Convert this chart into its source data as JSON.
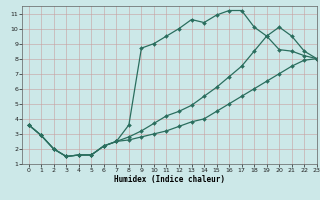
{
  "title": "",
  "xlabel": "Humidex (Indice chaleur)",
  "bg_color": "#cce8e8",
  "grid_color": "#aacccc",
  "line_color": "#2a6e5e",
  "xlim": [
    -0.5,
    23
  ],
  "ylim": [
    1,
    11.5
  ],
  "xticks": [
    0,
    1,
    2,
    3,
    4,
    5,
    6,
    7,
    8,
    9,
    10,
    11,
    12,
    13,
    14,
    15,
    16,
    17,
    18,
    19,
    20,
    21,
    22,
    23
  ],
  "yticks": [
    1,
    2,
    3,
    4,
    5,
    6,
    7,
    8,
    9,
    10,
    11
  ],
  "curve_top_x": [
    0,
    1,
    2,
    3,
    4,
    5,
    6,
    7,
    8,
    9,
    10,
    11,
    12,
    13,
    14,
    15,
    16,
    17,
    18,
    19,
    20,
    21,
    22,
    23
  ],
  "curve_top_y": [
    3.6,
    2.9,
    2.0,
    1.5,
    1.6,
    1.6,
    2.2,
    2.5,
    3.6,
    8.7,
    9.0,
    9.5,
    10.0,
    10.6,
    10.4,
    10.9,
    11.2,
    11.2,
    10.1,
    9.5,
    8.6,
    8.5,
    8.2,
    8.0
  ],
  "curve_mid_x": [
    0,
    1,
    2,
    3,
    4,
    5,
    6,
    7,
    8,
    9,
    10,
    11,
    12,
    13,
    14,
    15,
    16,
    17,
    18,
    19,
    20,
    21,
    22,
    23
  ],
  "curve_mid_y": [
    3.6,
    2.9,
    2.0,
    1.5,
    1.6,
    1.6,
    2.2,
    2.5,
    2.8,
    3.2,
    3.7,
    4.2,
    4.5,
    4.9,
    5.5,
    6.1,
    6.8,
    7.5,
    8.5,
    9.5,
    10.1,
    9.5,
    8.5,
    8.0
  ],
  "curve_bot_x": [
    0,
    1,
    2,
    3,
    4,
    5,
    6,
    7,
    8,
    9,
    10,
    11,
    12,
    13,
    14,
    15,
    16,
    17,
    18,
    19,
    20,
    21,
    22,
    23
  ],
  "curve_bot_y": [
    3.6,
    2.9,
    2.0,
    1.5,
    1.6,
    1.6,
    2.2,
    2.5,
    2.6,
    2.8,
    3.0,
    3.2,
    3.5,
    3.8,
    4.0,
    4.5,
    5.0,
    5.5,
    6.0,
    6.5,
    7.0,
    7.5,
    7.9,
    8.0
  ],
  "marker": "D",
  "markersize": 2.0,
  "linewidth": 0.9
}
